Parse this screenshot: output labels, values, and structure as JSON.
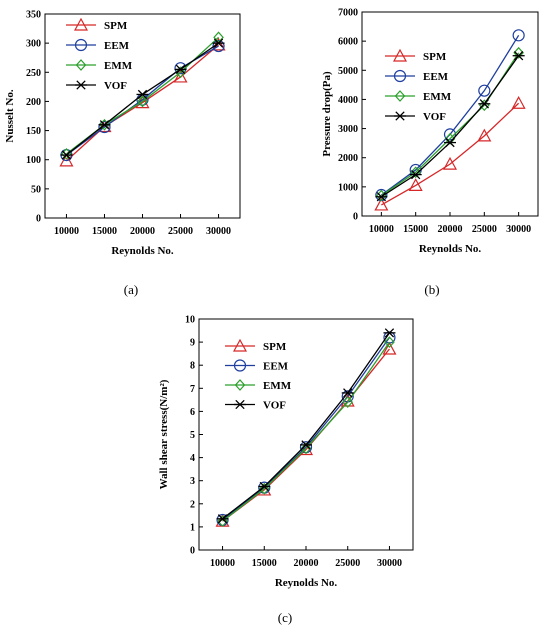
{
  "colors": {
    "SPM": "#d62728",
    "EEM": "#1f3f9f",
    "EMM": "#2ca02c",
    "VOF": "#000000"
  },
  "markers": {
    "SPM": "triangle",
    "EEM": "circle",
    "EMM": "diamond",
    "VOF": "asterisk"
  },
  "chart_data": [
    {
      "id": "a",
      "type": "line",
      "caption": "(a)",
      "xlabel": "Reynolds No.",
      "ylabel": "Nusselt No.",
      "x": [
        10000,
        15000,
        20000,
        25000,
        30000
      ],
      "xticks": [
        "10000",
        "15000",
        "20000",
        "25000",
        "30000"
      ],
      "yticks": [
        0,
        50,
        100,
        150,
        200,
        250,
        300,
        350
      ],
      "ylim": [
        0,
        350
      ],
      "legend_position": "top-left",
      "series": [
        {
          "name": "SPM",
          "values": [
            98,
            157,
            198,
            242,
            297
          ]
        },
        {
          "name": "EEM",
          "values": [
            108,
            156,
            203,
            257,
            295
          ]
        },
        {
          "name": "EMM",
          "values": [
            110,
            160,
            200,
            250,
            310
          ]
        },
        {
          "name": "VOF",
          "values": [
            108,
            160,
            212,
            255,
            300
          ]
        }
      ]
    },
    {
      "id": "b",
      "type": "line",
      "caption": "(b)",
      "xlabel": "Reynolds No.",
      "ylabel": "Pressure drop(Pa)",
      "x": [
        10000,
        15000,
        20000,
        25000,
        30000
      ],
      "xticks": [
        "10000",
        "15000",
        "20000",
        "25000",
        "30000"
      ],
      "yticks": [
        0,
        1000,
        2000,
        3000,
        4000,
        5000,
        6000,
        7000
      ],
      "ylim": [
        0,
        7000
      ],
      "legend_position": "top-left",
      "series": [
        {
          "name": "SPM",
          "values": [
            380,
            1050,
            1780,
            2750,
            3870
          ]
        },
        {
          "name": "EEM",
          "values": [
            720,
            1580,
            2800,
            4300,
            6200
          ]
        },
        {
          "name": "EMM",
          "values": [
            700,
            1500,
            2650,
            3800,
            5600
          ]
        },
        {
          "name": "VOF",
          "values": [
            660,
            1420,
            2520,
            3850,
            5500
          ]
        }
      ]
    },
    {
      "id": "c",
      "type": "line",
      "caption": "(c)",
      "xlabel": "Reynolds No.",
      "ylabel": "Wall shear stress(N/m²)",
      "x": [
        10000,
        15000,
        20000,
        25000,
        30000
      ],
      "xticks": [
        "10000",
        "15000",
        "20000",
        "25000",
        "30000"
      ],
      "yticks": [
        0,
        1,
        2,
        3,
        4,
        5,
        6,
        7,
        8,
        9,
        10
      ],
      "ylim": [
        0,
        10
      ],
      "legend_position": "top-left",
      "series": [
        {
          "name": "SPM",
          "values": [
            1.25,
            2.6,
            4.35,
            6.45,
            8.7
          ]
        },
        {
          "name": "EEM",
          "values": [
            1.3,
            2.7,
            4.45,
            6.65,
            9.2
          ]
        },
        {
          "name": "EMM",
          "values": [
            1.25,
            2.65,
            4.4,
            6.4,
            9.0
          ]
        },
        {
          "name": "VOF",
          "values": [
            1.35,
            2.75,
            4.55,
            6.8,
            9.4
          ]
        }
      ]
    }
  ]
}
